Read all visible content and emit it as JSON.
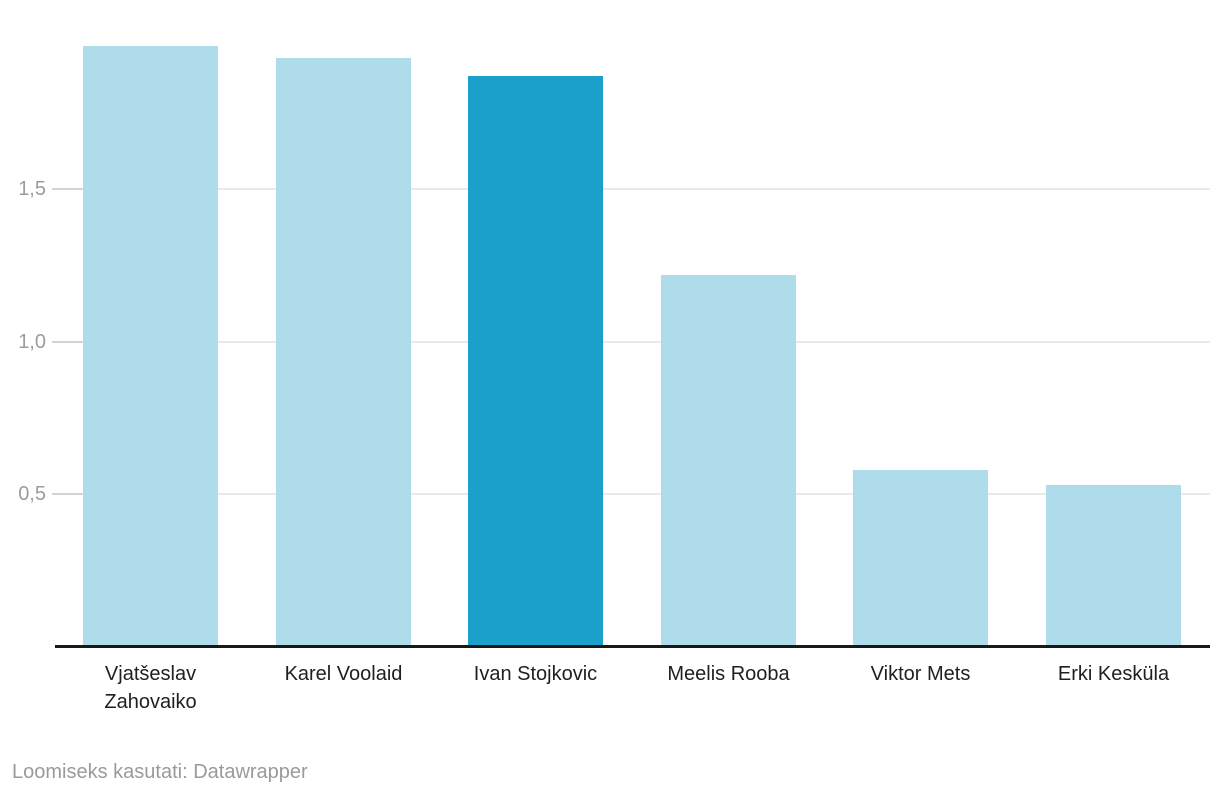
{
  "chart_data": {
    "type": "bar",
    "categories": [
      "Vjatšeslav Zahovaiko",
      "Karel Voolaid",
      "Ivan Stojkovic",
      "Meelis Rooba",
      "Viktor Mets",
      "Erki Kesküla"
    ],
    "values": [
      1.97,
      1.93,
      1.87,
      1.22,
      0.58,
      0.53
    ],
    "highlight_index": 2,
    "title": "",
    "xlabel": "",
    "ylabel": "",
    "ylim": [
      0,
      2.0
    ],
    "grid": true,
    "legend": "none",
    "yticks": [
      {
        "value": 0.5,
        "label": "0,5"
      },
      {
        "value": 1.0,
        "label": "1,0"
      },
      {
        "value": 1.5,
        "label": "1,5"
      }
    ],
    "colors": {
      "bar": "#aedcea",
      "highlight": "#1aa0cb",
      "gridline": "#e9e9e9",
      "tick_mark": "#d4d4d4",
      "baseline": "#191919",
      "ytick_label": "#9c9c9c",
      "xtick_label": "#1f1f1f"
    }
  },
  "footer": {
    "attribution": "Loomiseks kasutati: Datawrapper"
  }
}
